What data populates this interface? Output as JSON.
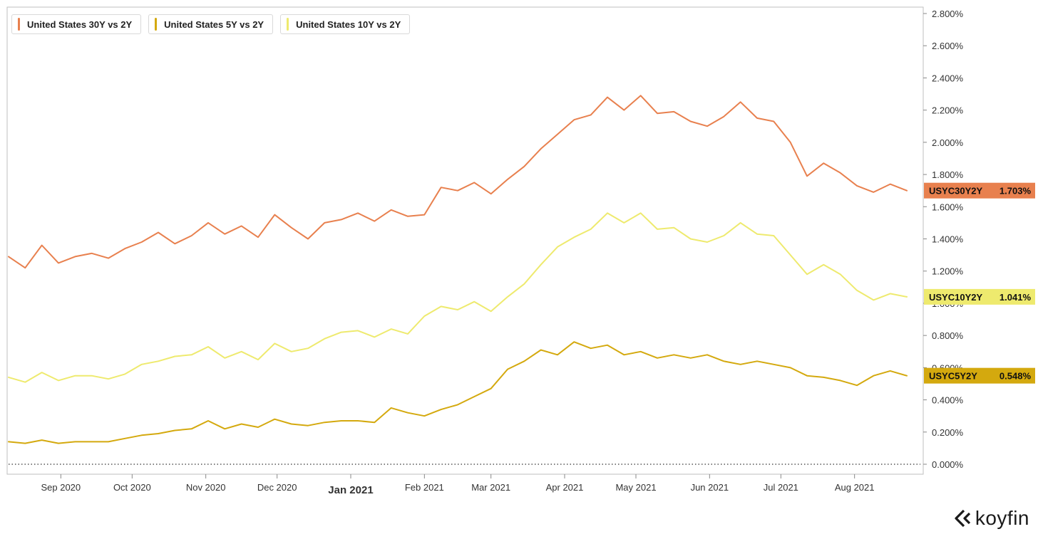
{
  "chart_data": {
    "type": "line",
    "ylim": [
      0,
      2.8
    ],
    "y_ticks": [
      "0.000%",
      "0.200%",
      "0.400%",
      "0.600%",
      "0.800%",
      "1.000%",
      "1.200%",
      "1.400%",
      "1.600%",
      "1.800%",
      "2.000%",
      "2.200%",
      "2.400%",
      "2.600%",
      "2.800%"
    ],
    "x_ticks": [
      "Sep 2020",
      "Oct 2020",
      "Nov 2020",
      "Dec 2020",
      "Jan 2021",
      "Feb 2021",
      "Mar 2021",
      "Apr 2021",
      "May 2021",
      "Jun 2021",
      "Jul 2021",
      "Aug 2021"
    ],
    "x_dates": [
      "2020-08-10",
      "2020-08-17",
      "2020-08-24",
      "2020-08-31",
      "2020-09-07",
      "2020-09-14",
      "2020-09-21",
      "2020-09-28",
      "2020-10-05",
      "2020-10-12",
      "2020-10-19",
      "2020-10-26",
      "2020-11-02",
      "2020-11-09",
      "2020-11-16",
      "2020-11-23",
      "2020-11-30",
      "2020-12-07",
      "2020-12-14",
      "2020-12-21",
      "2020-12-28",
      "2021-01-04",
      "2021-01-11",
      "2021-01-18",
      "2021-01-25",
      "2021-02-01",
      "2021-02-08",
      "2021-02-15",
      "2021-02-22",
      "2021-03-01",
      "2021-03-08",
      "2021-03-15",
      "2021-03-22",
      "2021-03-29",
      "2021-04-05",
      "2021-04-12",
      "2021-04-19",
      "2021-04-26",
      "2021-05-03",
      "2021-05-10",
      "2021-05-17",
      "2021-05-24",
      "2021-05-31",
      "2021-06-07",
      "2021-06-14",
      "2021-06-21",
      "2021-06-28",
      "2021-07-05",
      "2021-07-12",
      "2021-07-19",
      "2021-07-26",
      "2021-08-02",
      "2021-08-09",
      "2021-08-16",
      "2021-08-23"
    ],
    "grid": false,
    "baseline": 0,
    "series": [
      {
        "name": "United States 30Y vs 2Y",
        "code": "USYC30Y2Y",
        "last_label": "1.703%",
        "color": "#E8804E",
        "values": [
          1.29,
          1.22,
          1.36,
          1.25,
          1.29,
          1.31,
          1.28,
          1.34,
          1.38,
          1.44,
          1.37,
          1.42,
          1.5,
          1.43,
          1.48,
          1.41,
          1.55,
          1.47,
          1.4,
          1.5,
          1.52,
          1.56,
          1.51,
          1.58,
          1.54,
          1.55,
          1.72,
          1.7,
          1.75,
          1.68,
          1.77,
          1.85,
          1.96,
          2.05,
          2.14,
          2.17,
          2.28,
          2.2,
          2.29,
          2.18,
          2.19,
          2.13,
          2.1,
          2.16,
          2.25,
          2.15,
          2.13,
          2.0,
          1.79,
          1.87,
          1.81,
          1.73,
          1.69,
          1.74,
          1.7
        ]
      },
      {
        "name": "United States 10Y vs 2Y",
        "code": "USYC10Y2Y",
        "last_label": "1.041%",
        "color": "#EEEA6E",
        "values": [
          0.54,
          0.51,
          0.57,
          0.52,
          0.55,
          0.55,
          0.53,
          0.56,
          0.62,
          0.64,
          0.67,
          0.68,
          0.73,
          0.66,
          0.7,
          0.65,
          0.75,
          0.7,
          0.72,
          0.78,
          0.82,
          0.83,
          0.79,
          0.84,
          0.81,
          0.92,
          0.98,
          0.96,
          1.01,
          0.95,
          1.04,
          1.12,
          1.24,
          1.35,
          1.41,
          1.46,
          1.56,
          1.5,
          1.56,
          1.46,
          1.47,
          1.4,
          1.38,
          1.42,
          1.5,
          1.43,
          1.42,
          1.3,
          1.18,
          1.24,
          1.18,
          1.08,
          1.02,
          1.06,
          1.04
        ]
      },
      {
        "name": "United States 5Y vs 2Y",
        "code": "USYC5Y2Y",
        "last_label": "0.548%",
        "color": "#D4A90E",
        "values": [
          0.14,
          0.13,
          0.15,
          0.13,
          0.14,
          0.14,
          0.14,
          0.16,
          0.18,
          0.19,
          0.21,
          0.22,
          0.27,
          0.22,
          0.25,
          0.23,
          0.28,
          0.25,
          0.24,
          0.26,
          0.27,
          0.27,
          0.26,
          0.35,
          0.32,
          0.3,
          0.34,
          0.37,
          0.42,
          0.47,
          0.59,
          0.64,
          0.71,
          0.68,
          0.76,
          0.72,
          0.74,
          0.68,
          0.7,
          0.66,
          0.68,
          0.66,
          0.68,
          0.64,
          0.62,
          0.64,
          0.62,
          0.6,
          0.55,
          0.54,
          0.52,
          0.49,
          0.55,
          0.58,
          0.55
        ]
      }
    ]
  },
  "branding": {
    "logo_text": "koyfin"
  }
}
